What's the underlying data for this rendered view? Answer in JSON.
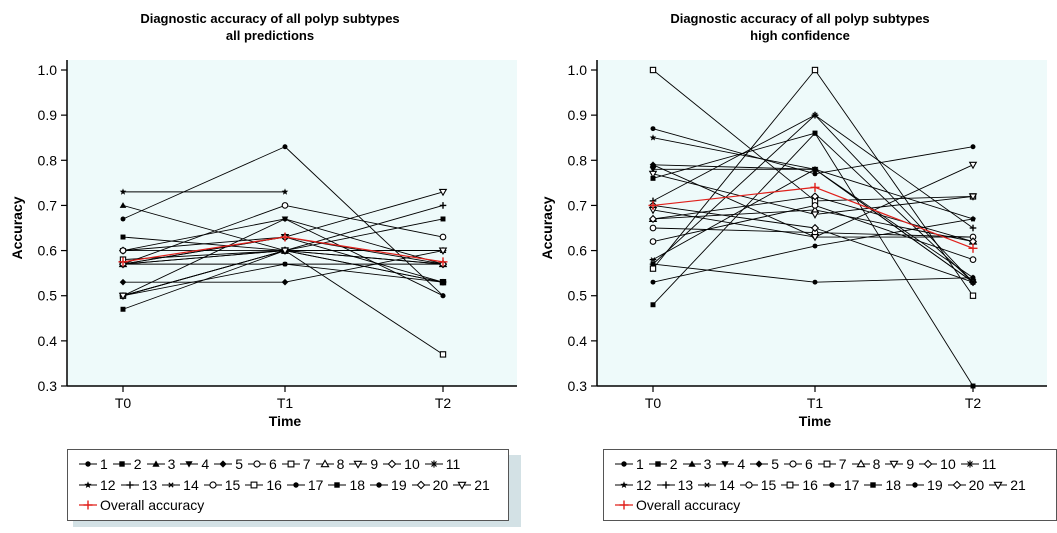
{
  "charts": [
    {
      "id": "left",
      "title_line1": "Diagnostic accuracy of all polyp subtypes",
      "title_line2": "all predictions",
      "xlabel": "Time",
      "ylabel": "Accuracy",
      "legend_overall": "Overall accuracy"
    },
    {
      "id": "right",
      "title_line1": "Diagnostic accuracy of all polyp subtypes",
      "title_line2": "high confidence",
      "xlabel": "Time",
      "ylabel": "Accuracy",
      "legend_overall": "Overall accuracy"
    }
  ],
  "legend_items": [
    {
      "label": "1",
      "marker": "dot"
    },
    {
      "label": "2",
      "marker": "square"
    },
    {
      "label": "3",
      "marker": "triangle-up"
    },
    {
      "label": "4",
      "marker": "triangle-down"
    },
    {
      "label": "5",
      "marker": "diamond"
    },
    {
      "label": "6",
      "marker": "circle-open"
    },
    {
      "label": "7",
      "marker": "square-open"
    },
    {
      "label": "8",
      "marker": "triangle-up-open"
    },
    {
      "label": "9",
      "marker": "triangle-down-open"
    },
    {
      "label": "10",
      "marker": "diamond-open"
    },
    {
      "label": "11",
      "marker": "asterisk"
    },
    {
      "label": "12",
      "marker": "star"
    },
    {
      "label": "13",
      "marker": "plus"
    },
    {
      "label": "14",
      "marker": "x"
    },
    {
      "label": "15",
      "marker": "circle-open"
    },
    {
      "label": "16",
      "marker": "square-open"
    },
    {
      "label": "17",
      "marker": "dot"
    },
    {
      "label": "18",
      "marker": "square"
    },
    {
      "label": "19",
      "marker": "dot"
    },
    {
      "label": "20",
      "marker": "diamond-open"
    },
    {
      "label": "21",
      "marker": "triangle-down-open"
    }
  ],
  "colors": {
    "plot_background": "#eefafa",
    "series": "#000000",
    "overall": "#e0201b",
    "legend_shadow": "#d3e1e5"
  },
  "chart_data": [
    {
      "type": "line",
      "title": "Diagnostic accuracy of all polyp subtypes\nall predictions",
      "xlabel": "Time",
      "ylabel": "Accuracy",
      "x": [
        "T0",
        "T1",
        "T2"
      ],
      "ylim": [
        0.3,
        1.0
      ],
      "yticks": [
        "0.3",
        "0.4",
        "0.5",
        "0.6",
        "0.7",
        "0.8",
        "0.9",
        "1.0"
      ],
      "grid": false,
      "legend_position": "bottom",
      "series": [
        {
          "name": "1",
          "marker": "dot",
          "values": [
            0.67,
            0.83,
            0.5
          ]
        },
        {
          "name": "2",
          "marker": "square",
          "values": [
            0.63,
            0.6,
            0.67
          ]
        },
        {
          "name": "3",
          "marker": "triangle-up",
          "values": [
            0.7,
            0.6,
            0.6
          ]
        },
        {
          "name": "4",
          "marker": "triangle-down",
          "values": [
            0.6,
            0.67,
            0.57
          ]
        },
        {
          "name": "5",
          "marker": "diamond",
          "values": [
            0.53,
            0.53,
            0.6
          ]
        },
        {
          "name": "6",
          "marker": "circle-open",
          "values": [
            0.57,
            0.7,
            0.63
          ]
        },
        {
          "name": "7",
          "marker": "square-open",
          "values": [
            0.5,
            0.6,
            0.37
          ]
        },
        {
          "name": "8",
          "marker": "triangle-up-open",
          "values": [
            0.57,
            0.6,
            0.57
          ]
        },
        {
          "name": "9",
          "marker": "triangle-down-open",
          "values": [
            0.57,
            0.63,
            0.73
          ]
        },
        {
          "name": "10",
          "marker": "diamond-open",
          "values": [
            0.6,
            0.6,
            0.57
          ]
        },
        {
          "name": "11",
          "marker": "asterisk",
          "values": [
            0.57,
            0.6,
            0.6
          ]
        },
        {
          "name": "12",
          "marker": "star",
          "values": [
            0.73,
            0.73,
            null
          ]
        },
        {
          "name": "13",
          "marker": "plus",
          "values": [
            0.5,
            0.6,
            0.7
          ]
        },
        {
          "name": "14",
          "marker": "x",
          "values": [
            0.57,
            0.57,
            0.57
          ]
        },
        {
          "name": "15",
          "marker": "circle-open",
          "values": [
            0.6,
            0.63,
            0.53
          ]
        },
        {
          "name": "16",
          "marker": "square-open",
          "values": [
            0.58,
            0.6,
            0.53
          ]
        },
        {
          "name": "17",
          "marker": "dot",
          "values": [
            0.5,
            0.67,
            0.5
          ]
        },
        {
          "name": "18",
          "marker": "square",
          "values": [
            0.47,
            0.6,
            0.53
          ]
        },
        {
          "name": "19",
          "marker": "dot",
          "values": [
            0.5,
            0.57,
            0.53
          ]
        },
        {
          "name": "20",
          "marker": "diamond-open",
          "values": [
            0.57,
            0.63,
            0.57
          ]
        },
        {
          "name": "21",
          "marker": "triangle-down-open",
          "values": [
            0.5,
            0.6,
            0.6
          ]
        },
        {
          "name": "Overall accuracy",
          "marker": "plus",
          "overall": true,
          "values": [
            0.575,
            0.63,
            0.575
          ]
        }
      ]
    },
    {
      "type": "line",
      "title": "Diagnostic accuracy of all polyp subtypes\nhigh confidence",
      "xlabel": "Time",
      "ylabel": "Accuracy",
      "x": [
        "T0",
        "T1",
        "T2"
      ],
      "ylim": [
        0.3,
        1.0
      ],
      "yticks": [
        "0.3",
        "0.4",
        "0.5",
        "0.6",
        "0.7",
        "0.8",
        "0.9",
        "1.0"
      ],
      "grid": false,
      "legend_position": "bottom",
      "series": [
        {
          "name": "1",
          "marker": "dot",
          "values": [
            0.87,
            0.77,
            0.83
          ]
        },
        {
          "name": "2",
          "marker": "square",
          "values": [
            0.76,
            0.86,
            0.53
          ]
        },
        {
          "name": "3",
          "marker": "triangle-up",
          "values": [
            0.79,
            0.78,
            0.54
          ]
        },
        {
          "name": "4",
          "marker": "triangle-down",
          "values": [
            0.78,
            0.78,
            0.53
          ]
        },
        {
          "name": "5",
          "marker": "diamond",
          "values": [
            0.79,
            0.63,
            0.63
          ]
        },
        {
          "name": "6",
          "marker": "circle-open",
          "values": [
            0.65,
            0.64,
            0.63
          ]
        },
        {
          "name": "7",
          "marker": "square-open",
          "values": [
            1.0,
            0.71,
            0.72
          ]
        },
        {
          "name": "8",
          "marker": "triangle-up-open",
          "values": [
            0.67,
            0.69,
            0.62
          ]
        },
        {
          "name": "9",
          "marker": "triangle-down-open",
          "values": [
            0.69,
            0.63,
            0.79
          ]
        },
        {
          "name": "10",
          "marker": "diamond-open",
          "values": [
            0.7,
            0.65,
            0.53
          ]
        },
        {
          "name": "11",
          "marker": "asterisk",
          "values": [
            0.57,
            0.9,
            0.53
          ]
        },
        {
          "name": "12",
          "marker": "star",
          "values": [
            0.85,
            0.78,
            0.67
          ]
        },
        {
          "name": "13",
          "marker": "plus",
          "values": [
            0.71,
            0.9,
            0.65
          ]
        },
        {
          "name": "14",
          "marker": "x",
          "values": [
            0.58,
            0.78,
            0.53
          ]
        },
        {
          "name": "15",
          "marker": "circle-open",
          "values": [
            0.62,
            0.7,
            0.58
          ]
        },
        {
          "name": "16",
          "marker": "square-open",
          "values": [
            0.56,
            1.0,
            0.5
          ]
        },
        {
          "name": "17",
          "marker": "dot",
          "values": [
            0.53,
            0.61,
            0.67
          ]
        },
        {
          "name": "18",
          "marker": "square",
          "values": [
            0.48,
            0.86,
            0.3
          ]
        },
        {
          "name": "19",
          "marker": "dot",
          "values": [
            0.57,
            0.53,
            0.54
          ]
        },
        {
          "name": "20",
          "marker": "diamond-open",
          "values": [
            0.67,
            0.72,
            0.62
          ]
        },
        {
          "name": "21",
          "marker": "triangle-down-open",
          "values": [
            0.77,
            0.68,
            0.72
          ]
        },
        {
          "name": "Overall accuracy",
          "marker": "plus",
          "overall": true,
          "values": [
            0.7,
            0.74,
            0.605
          ]
        }
      ]
    }
  ]
}
